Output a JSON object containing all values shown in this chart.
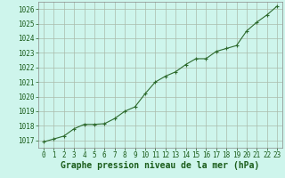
{
  "x": [
    0,
    1,
    2,
    3,
    4,
    5,
    6,
    7,
    8,
    9,
    10,
    11,
    12,
    13,
    14,
    15,
    16,
    17,
    18,
    19,
    20,
    21,
    22,
    23
  ],
  "y": [
    1016.9,
    1017.1,
    1017.3,
    1017.8,
    1018.1,
    1018.1,
    1018.15,
    1018.5,
    1019.0,
    1019.3,
    1020.2,
    1021.0,
    1021.4,
    1021.7,
    1022.2,
    1022.6,
    1022.6,
    1023.1,
    1023.3,
    1023.5,
    1024.5,
    1025.1,
    1025.6,
    1026.2
  ],
  "line_color": "#2d6a2d",
  "marker_color": "#2d6a2d",
  "bg_color": "#cef5ec",
  "grid_color": "#aabbaa",
  "xlabel": "Graphe pression niveau de la mer (hPa)",
  "xlabel_color": "#1a5c1a",
  "tick_color": "#1a5c1a",
  "ylim": [
    1016.5,
    1026.5
  ],
  "yticks": [
    1017,
    1018,
    1019,
    1020,
    1021,
    1022,
    1023,
    1024,
    1025,
    1026
  ],
  "xticks": [
    0,
    1,
    2,
    3,
    4,
    5,
    6,
    7,
    8,
    9,
    10,
    11,
    12,
    13,
    14,
    15,
    16,
    17,
    18,
    19,
    20,
    21,
    22,
    23
  ],
  "spine_color": "#888888",
  "tick_fontsize": 5.5,
  "xlabel_fontsize": 7.0
}
